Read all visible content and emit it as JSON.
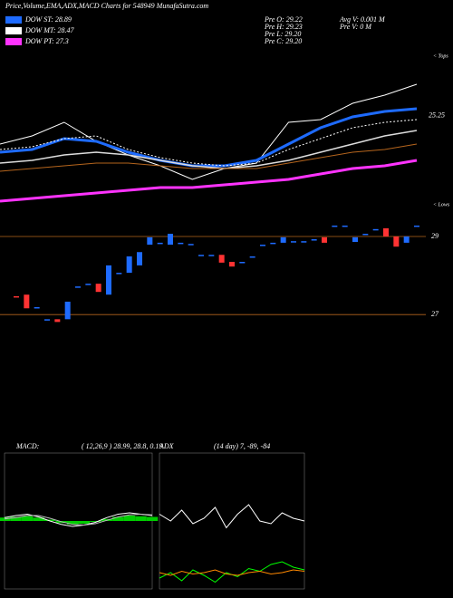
{
  "header": {
    "title": "Price,Volume,EMA,ADX,MACD Charts for 548949 MunafaSutra.com",
    "legend": [
      {
        "label": "DOW ST: 28.89",
        "color": "#1e6bff"
      },
      {
        "label": "DOW MT: 28.47",
        "color": "#ffffff"
      },
      {
        "label": "DOW PT: 27.3",
        "color": "#ff33ff"
      }
    ],
    "stats": [
      "Pre   O: 29.22",
      "Pre   H: 29.23",
      "Pre   L: 29.20",
      "Pre   C: 29.20"
    ],
    "stats2": [
      "Avg V: 0.001 M",
      "Pre  V: 0  M"
    ],
    "tops": "< Tops",
    "lows": "< Lows"
  },
  "chart_data": [
    {
      "type": "line",
      "ylim": [
        22,
        27.5
      ],
      "annotation": {
        "value": 25.25,
        "label": "25.25"
      },
      "series": [
        {
          "color": "#ffffff",
          "width": 1,
          "values": [
            24.2,
            24.5,
            25.0,
            24.3,
            23.8,
            23.4,
            22.9,
            23.3,
            23.5,
            25.0,
            25.1,
            25.7,
            26.0,
            26.4
          ]
        },
        {
          "color": "#1e6bff",
          "width": 3,
          "values": [
            23.9,
            24.0,
            24.4,
            24.3,
            23.9,
            23.6,
            23.4,
            23.4,
            23.6,
            24.2,
            24.8,
            25.2,
            25.4,
            25.5
          ]
        },
        {
          "color": "#ffffff",
          "width": 1,
          "dash": true,
          "values": [
            24.0,
            24.1,
            24.4,
            24.5,
            24.0,
            23.7,
            23.5,
            23.4,
            23.5,
            24.0,
            24.4,
            24.8,
            25.0,
            25.1
          ]
        },
        {
          "color": "#dddddd",
          "width": 1.5,
          "values": [
            23.5,
            23.6,
            23.8,
            23.9,
            23.8,
            23.6,
            23.4,
            23.3,
            23.4,
            23.6,
            23.9,
            24.2,
            24.5,
            24.7
          ]
        },
        {
          "color": "#b5651d",
          "width": 1,
          "values": [
            23.2,
            23.3,
            23.4,
            23.5,
            23.5,
            23.4,
            23.3,
            23.3,
            23.3,
            23.5,
            23.7,
            23.9,
            24.0,
            24.2
          ]
        },
        {
          "color": "#ff33ff",
          "width": 3,
          "values": [
            22.1,
            22.2,
            22.3,
            22.4,
            22.5,
            22.6,
            22.6,
            22.7,
            22.8,
            22.9,
            23.1,
            23.3,
            23.4,
            23.6
          ]
        }
      ]
    },
    {
      "type": "candlestick",
      "ylim": [
        26.47,
        29.72
      ],
      "yticks": [
        27,
        29
      ],
      "color_up": "#1e6bff",
      "color_down": "#ff3333",
      "grid_color": "#b5651d",
      "open": [
        27.47,
        27.51,
        27.19,
        26.88,
        26.88,
        26.88,
        27.72,
        27.79,
        27.79,
        27.51,
        28.07,
        28.07,
        28.26,
        28.79,
        28.84,
        28.79,
        28.84,
        28.81,
        28.53,
        28.53,
        28.53,
        28.35,
        28.35,
        28.49,
        28.79,
        28.84,
        28.84,
        28.88,
        28.88,
        28.93,
        28.98,
        29.28,
        29.28,
        28.86,
        29.07,
        29.19,
        29.21,
        29.0,
        28.84,
        29.28
      ],
      "close": [
        27.45,
        27.16,
        27.19,
        26.88,
        26.81,
        27.33,
        27.72,
        27.79,
        27.58,
        28.26,
        28.07,
        28.49,
        28.6,
        28.98,
        28.84,
        29.07,
        28.84,
        28.81,
        28.53,
        28.53,
        28.33,
        28.23,
        28.35,
        28.49,
        28.79,
        28.84,
        28.98,
        28.88,
        28.88,
        28.93,
        28.84,
        29.28,
        29.28,
        28.98,
        29.07,
        29.19,
        29.0,
        28.74,
        29.0,
        29.28
      ]
    },
    {
      "type": "macd",
      "title": "MACD:",
      "params": "( 12,26,9 ) 28.99, 28.8, 0.19",
      "ylim": [
        -1,
        1
      ],
      "histogram": [
        0.05,
        0.06,
        0.07,
        0.05,
        0.02,
        -0.03,
        -0.05,
        -0.04,
        -0.01,
        0.03,
        0.06,
        0.08,
        0.07,
        0.06
      ],
      "bar_color": "#00cc00",
      "series": [
        {
          "color": "#ffffff",
          "values": [
            0.05,
            0.08,
            0.1,
            0.06,
            0,
            -0.05,
            -0.08,
            -0.06,
            -0.02,
            0.05,
            0.1,
            0.12,
            0.1,
            0.08
          ]
        },
        {
          "color": "#bbbbbb",
          "values": [
            0.03,
            0.05,
            0.08,
            0.08,
            0.04,
            -0.01,
            -0.05,
            -0.06,
            -0.04,
            0.01,
            0.06,
            0.09,
            0.1,
            0.09
          ]
        }
      ]
    },
    {
      "type": "adx",
      "title": "ADX",
      "params": "(14  day) 7, -89, -84",
      "ylim": [
        0,
        100
      ],
      "series": [
        {
          "color": "#ffffff",
          "values": [
            55,
            50,
            58,
            48,
            52,
            60,
            45,
            55,
            62,
            50,
            48,
            56,
            52,
            50
          ]
        },
        {
          "color": "#00ff00",
          "values": [
            8,
            12,
            6,
            14,
            10,
            5,
            12,
            9,
            15,
            13,
            18,
            20,
            16,
            14
          ]
        },
        {
          "color": "#ff8800",
          "values": [
            12,
            10,
            13,
            11,
            12,
            14,
            11,
            10,
            12,
            13,
            11,
            12,
            14,
            13
          ]
        }
      ]
    }
  ]
}
